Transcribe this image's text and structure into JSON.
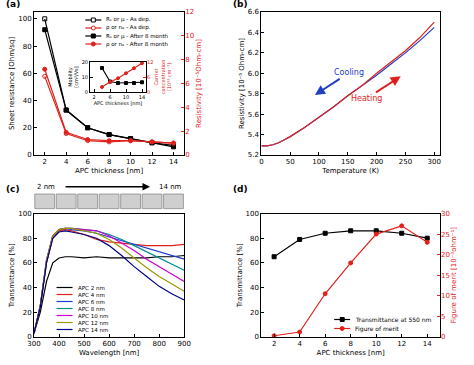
{
  "chart_data": [
    {
      "panel": "(a)",
      "type": "line",
      "x_label": "APC thickness [nm]",
      "y_label": "Sheet resistance [Ohm/sq]",
      "y2_label": "Resistivity [10⁻⁵Ohm-cm]",
      "x": [
        2,
        4,
        6,
        8,
        10,
        12,
        14
      ],
      "xlim": [
        1,
        15
      ],
      "xticks": [
        2,
        4,
        6,
        8,
        10,
        12,
        14
      ],
      "ylim": [
        0,
        105
      ],
      "yticks": [
        0,
        20,
        40,
        60,
        80,
        100
      ],
      "y2lim": [
        0,
        12
      ],
      "y2ticks": [
        0,
        2,
        4,
        6,
        8,
        10,
        12
      ],
      "grid": false,
      "legend": "upper right",
      "series": [
        {
          "name": "Rₛ or μ - As dep.",
          "color": "#000000",
          "marker": "square-open",
          "values": [
            100,
            33,
            20,
            15,
            12,
            9,
            7
          ]
        },
        {
          "name": "ρ or nₑ - As dep.",
          "color": "#e0201b",
          "marker": "circle-open",
          "axis": "y2",
          "values": [
            6.6,
            1.8,
            1.2,
            1.1,
            1.2,
            1.1,
            1.0
          ]
        },
        {
          "name": "Rₛ or μ - After 8 month",
          "color": "#000000",
          "marker": "square",
          "values": [
            92,
            33,
            20,
            15,
            12,
            9,
            6
          ]
        },
        {
          "name": "ρ or nₑ - After 8 month",
          "color": "#e0201b",
          "marker": "circle",
          "axis": "y2",
          "values": [
            7.2,
            1.9,
            1.3,
            1.2,
            1.2,
            1.1,
            1.0
          ]
        }
      ],
      "inset": {
        "type": "line",
        "x_label": "APC thickness [nm]",
        "y_label": "Mobility [cm²/Vs]",
        "y2_label": "Carrier concentration [10²² cm⁻³]",
        "x": [
          4,
          6,
          8,
          10,
          12,
          14
        ],
        "xlim": [
          1,
          15
        ],
        "xticks": [
          2,
          6,
          10,
          14
        ],
        "ylim": [
          0,
          20
        ],
        "yticks": [
          0,
          10,
          20
        ],
        "y2lim": [
          0,
          12
        ],
        "y2ticks": [
          0,
          6,
          12
        ],
        "series": [
          {
            "color": "#000000",
            "marker": "square",
            "values": [
              16,
              7,
              6,
              6,
              6,
              6.5
            ]
          },
          {
            "color": "#e0201b",
            "marker": "circle",
            "axis": "y2",
            "values": [
              2,
              4,
              5.5,
              7.5,
              9.5,
              11.5
            ]
          }
        ]
      }
    },
    {
      "panel": "(b)",
      "type": "line",
      "x_label": "Temperature (K)",
      "y_label": "Resistivity [10⁻⁵ Ohm-cm]",
      "x": [
        0,
        10,
        20,
        30,
        40,
        50,
        75,
        100,
        125,
        150,
        175,
        200,
        225,
        250,
        275,
        300
      ],
      "xlim": [
        0,
        310
      ],
      "xticks": [
        0,
        50,
        100,
        150,
        200,
        250,
        300
      ],
      "ylim": [
        5.2,
        6.6
      ],
      "yticks": [
        5.2,
        5.4,
        5.6,
        5.8,
        {
          "value": 6,
          "label": "6.0"
        },
        6.2,
        6.4,
        6.6
      ],
      "grid": false,
      "series": [
        {
          "color": "#2040c0",
          "values": [
            5.29,
            5.29,
            5.3,
            5.32,
            5.35,
            5.38,
            5.47,
            5.57,
            5.67,
            5.78,
            5.88,
            5.98,
            6.09,
            6.2,
            6.32,
            6.45
          ]
        },
        {
          "color": "#e0201b",
          "values": [
            5.29,
            5.29,
            5.3,
            5.32,
            5.35,
            5.38,
            5.47,
            5.57,
            5.67,
            5.78,
            5.88,
            6.0,
            6.11,
            6.22,
            6.35,
            6.5
          ]
        }
      ],
      "annotations": [
        {
          "text": "Cooling",
          "color": "#2040c0"
        },
        {
          "text": "Heating",
          "color": "#e0201b"
        }
      ]
    },
    {
      "panel": "(c)",
      "type": "line",
      "x_label": "Wavelength [nm]",
      "y_label": "Transmittance [%]",
      "x": [
        300,
        325,
        350,
        375,
        400,
        425,
        450,
        500,
        550,
        600,
        650,
        700,
        750,
        800,
        850,
        900
      ],
      "xlim": [
        300,
        900
      ],
      "xticks": [
        300,
        400,
        500,
        600,
        700,
        800,
        900
      ],
      "ylim": [
        0,
        100
      ],
      "yticks": [
        0,
        20,
        40,
        60,
        80,
        100
      ],
      "grid": false,
      "legend": "lower left",
      "annotations": [
        "2 nm",
        "14 nm"
      ],
      "series": [
        {
          "name": "APC 2 nm",
          "color": "#000000",
          "values": [
            3,
            20,
            45,
            60,
            64,
            65,
            65,
            64,
            65,
            64,
            64,
            64,
            64,
            65,
            65,
            66
          ]
        },
        {
          "name": "APC 4 nm",
          "color": "#e0201b",
          "values": [
            3,
            25,
            60,
            80,
            86,
            87,
            86,
            83,
            79,
            77,
            76,
            75,
            74,
            74,
            74,
            75
          ]
        },
        {
          "name": "APC 6 nm",
          "color": "#1f3fd0",
          "values": [
            3,
            25,
            62,
            82,
            87,
            88,
            87,
            86,
            84,
            81,
            78,
            75,
            72,
            69,
            66,
            63
          ]
        },
        {
          "name": "APC 8 nm",
          "color": "#008b8b",
          "values": [
            3,
            25,
            62,
            82,
            87,
            88,
            88,
            87,
            86,
            83,
            79,
            74,
            69,
            64,
            59,
            54
          ]
        },
        {
          "name": "APC 10 nm",
          "color": "#cc00cc",
          "values": [
            3,
            25,
            62,
            82,
            87,
            88,
            88,
            87,
            86,
            82,
            76,
            70,
            63,
            57,
            51,
            45
          ]
        },
        {
          "name": "APC 12 nm",
          "color": "#9a9a00",
          "values": [
            3,
            25,
            62,
            82,
            87,
            88,
            88,
            86,
            84,
            79,
            72,
            64,
            56,
            49,
            43,
            37
          ]
        },
        {
          "name": "APC 14 nm",
          "color": "#000080",
          "values": [
            3,
            24,
            60,
            80,
            85,
            86,
            85,
            83,
            80,
            74,
            66,
            57,
            49,
            41,
            35,
            30
          ]
        }
      ]
    },
    {
      "panel": "(d)",
      "type": "line",
      "x_label": "APC thickness [nm]",
      "y_label": "Transmittance [%]",
      "y2_label": "Figure of merit [10⁻³ohm⁻¹]",
      "x": [
        2,
        4,
        6,
        8,
        10,
        12,
        14
      ],
      "xlim": [
        1,
        15
      ],
      "xticks": [
        2,
        4,
        6,
        8,
        10,
        12,
        14
      ],
      "ylim": [
        0,
        100
      ],
      "yticks": [
        0,
        20,
        40,
        60,
        80,
        100
      ],
      "y2lim": [
        0,
        30
      ],
      "y2ticks": [
        0,
        5,
        10,
        15,
        20,
        25,
        30
      ],
      "grid": false,
      "legend": "lower right",
      "series": [
        {
          "name": "Transmittance at 550 nm",
          "color": "#000000",
          "marker": "square",
          "values": [
            65,
            79,
            84,
            86,
            86,
            84,
            80
          ]
        },
        {
          "name": "Figure of merit",
          "color": "#e0201b",
          "marker": "circle",
          "axis": "y2",
          "values": [
            0.3,
            1.2,
            10.5,
            18,
            25,
            27,
            23
          ]
        }
      ]
    }
  ]
}
